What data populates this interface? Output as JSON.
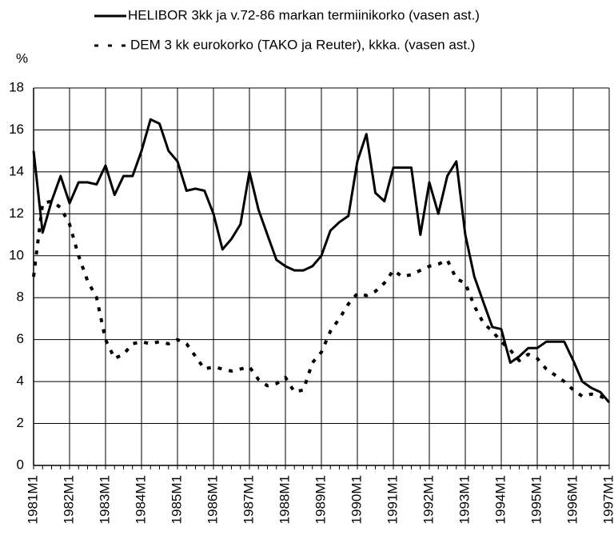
{
  "chart_data": {
    "type": "line",
    "y_label": "%",
    "categories": [
      "1981M1",
      null,
      null,
      null,
      "1982M1",
      null,
      null,
      null,
      "1983M1",
      null,
      null,
      null,
      "1984M1",
      null,
      null,
      null,
      "1985M1",
      null,
      null,
      null,
      "1986M1",
      null,
      null,
      null,
      "1987M1",
      null,
      null,
      null,
      "1988M1",
      null,
      null,
      null,
      "1989M1",
      null,
      null,
      null,
      "1990M1",
      null,
      null,
      null,
      "1991M1",
      null,
      null,
      null,
      "1992M1",
      null,
      null,
      null,
      "1993M1",
      null,
      null,
      null,
      "1994M1",
      null,
      null,
      null,
      "1995M1",
      null,
      null,
      null,
      "1996M1",
      null,
      null,
      null,
      "1997M1"
    ],
    "series": [
      {
        "name": "HELIBOR 3kk ja v.72-86 markan termiinikorko (vasen ast.)",
        "color": "#000000",
        "dashed": false,
        "values": [
          15.0,
          11.1,
          12.6,
          13.8,
          12.5,
          13.5,
          13.5,
          13.4,
          14.3,
          12.9,
          13.8,
          13.8,
          15.0,
          16.5,
          16.3,
          15.0,
          14.5,
          13.1,
          13.2,
          13.1,
          12.0,
          10.3,
          10.8,
          11.5,
          14.0,
          12.2,
          11.0,
          9.8,
          9.5,
          9.3,
          9.3,
          9.5,
          10.0,
          11.2,
          11.6,
          11.9,
          14.5,
          15.8,
          13.0,
          12.6,
          14.2,
          14.2,
          14.2,
          11.0,
          13.5,
          12.0,
          13.8,
          14.5,
          11.0,
          9.0,
          7.8,
          6.6,
          6.5,
          4.9,
          5.2,
          5.6,
          5.6,
          5.9,
          5.9,
          5.9,
          5.0,
          4.0,
          3.7,
          3.5,
          3.0
        ]
      },
      {
        "name": "DEM 3 kk eurokorko (TAKO ja Reuter), kkka. (vasen ast.)",
        "color": "#000000",
        "dashed": true,
        "values": [
          9.0,
          12.5,
          12.6,
          12.3,
          11.5,
          10.0,
          8.8,
          8.0,
          6.0,
          5.1,
          5.3,
          5.8,
          5.9,
          5.8,
          5.9,
          5.8,
          6.0,
          5.8,
          5.2,
          4.6,
          4.7,
          4.6,
          4.5,
          4.6,
          4.7,
          4.1,
          3.8,
          3.9,
          4.2,
          3.5,
          3.6,
          4.9,
          5.4,
          6.4,
          7.0,
          7.7,
          8.2,
          8.1,
          8.3,
          8.7,
          9.3,
          9.0,
          9.1,
          9.3,
          9.5,
          9.6,
          9.8,
          8.9,
          8.7,
          7.6,
          6.8,
          6.4,
          5.9,
          5.5,
          5.0,
          5.3,
          5.1,
          4.6,
          4.3,
          4.0,
          3.6,
          3.3,
          3.4,
          3.3,
          3.1
        ]
      }
    ],
    "ylim": [
      0,
      18
    ],
    "yticks": [
      0,
      2,
      4,
      6,
      8,
      10,
      12,
      14,
      16,
      18
    ],
    "grid": true
  }
}
